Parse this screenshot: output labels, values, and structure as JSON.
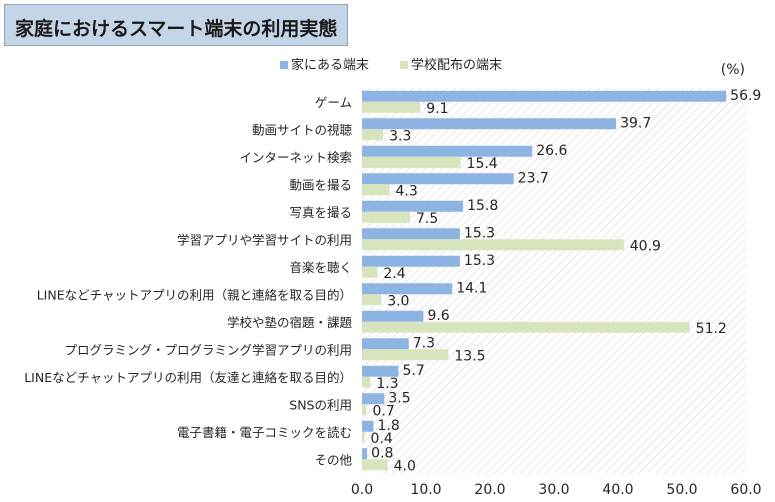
{
  "title": "家庭におけるスマート端末の利用実態",
  "unit_label": "(%)",
  "colors": {
    "home": "#8eb4e3",
    "school": "#d7e4bd",
    "hatch": "#d9d9d9",
    "text": "#262626"
  },
  "chart_data": {
    "type": "bar",
    "orientation": "horizontal",
    "title": "家庭におけるスマート端末の利用実態",
    "unit": "(%)",
    "legend": "top-center",
    "categories": [
      "ゲーム",
      "動画サイトの視聴",
      "インターネット検索",
      "動画を撮る",
      "写真を撮る",
      "学習アプリや学習サイトの利用",
      "音楽を聴く",
      "LINEなどチャットアプリの利用（親と連絡を取る目的）",
      "学校や塾の宿題・課題",
      "プログラミング・プログラミング学習アプリの利用",
      "LINEなどチャットアプリの利用（友達と連絡を取る目的）",
      "SNSの利用",
      "電子書籍・電子コミックを読む",
      "その他"
    ],
    "series": [
      {
        "name": "家にある端末",
        "values": [
          56.9,
          39.7,
          26.6,
          23.7,
          15.8,
          15.3,
          15.3,
          14.1,
          9.6,
          7.3,
          5.7,
          3.5,
          1.8,
          0.8
        ]
      },
      {
        "name": "学校配布の端末",
        "values": [
          9.1,
          3.3,
          15.4,
          4.3,
          7.5,
          40.9,
          2.4,
          3.0,
          51.2,
          13.5,
          1.3,
          0.7,
          0.4,
          4.0
        ]
      }
    ],
    "xlim": [
      0,
      60
    ],
    "xticks": [
      "0.0",
      "10.0",
      "20.0",
      "30.0",
      "40.0",
      "50.0",
      "60.0"
    ],
    "grid": false
  }
}
